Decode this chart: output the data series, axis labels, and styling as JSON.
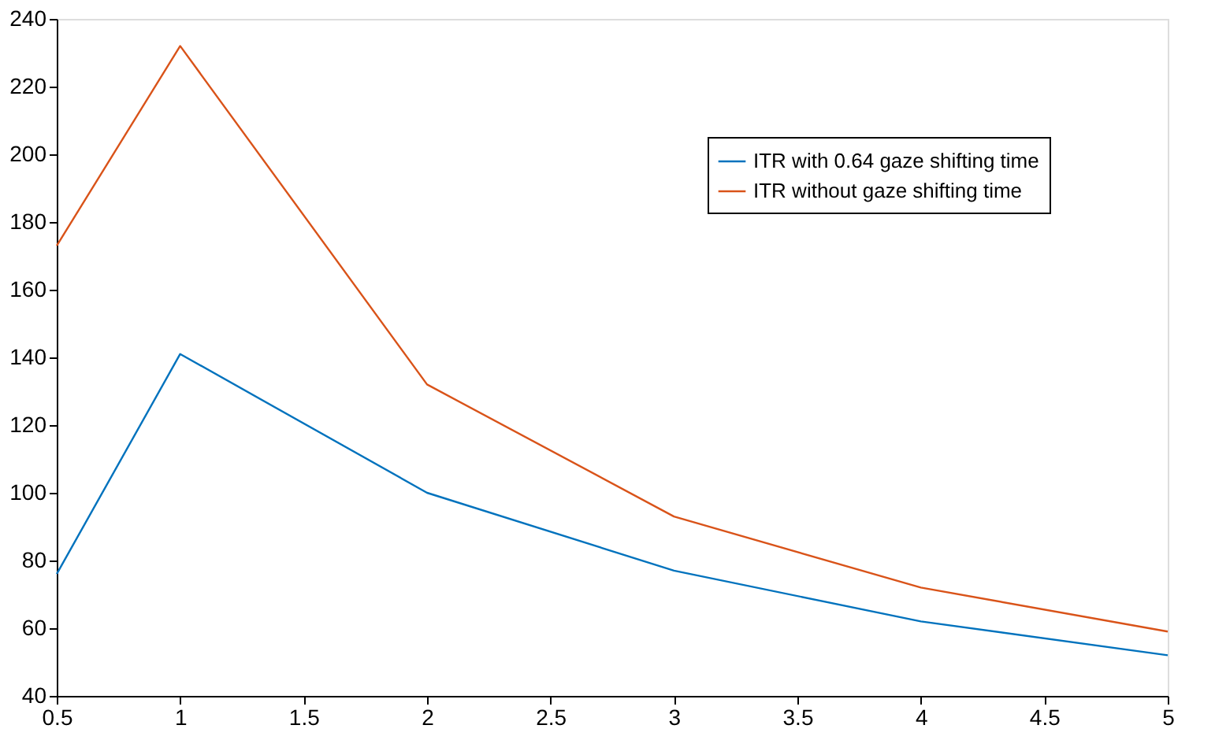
{
  "chart_data": {
    "type": "line",
    "x": [
      0.5,
      1,
      2,
      3,
      4,
      5
    ],
    "series": [
      {
        "name": "ITR with 0.64 gaze shifting time",
        "color": "#0072bd",
        "values": [
          76,
          141,
          100,
          77,
          62,
          52
        ]
      },
      {
        "name": "ITR without gaze shifting time",
        "color": "#d95319",
        "values": [
          173,
          232,
          132,
          93,
          72,
          59
        ]
      }
    ],
    "xlim": [
      0.5,
      5
    ],
    "xticks": [
      0.5,
      1,
      1.5,
      2,
      2.5,
      3,
      3.5,
      4,
      4.5,
      5
    ],
    "ylim": [
      40,
      240
    ],
    "yticks": [
      40,
      60,
      80,
      100,
      120,
      140,
      160,
      180,
      200,
      220,
      240
    ],
    "grid": false,
    "legend": "top right",
    "marker": "none",
    "line_style": "solid"
  }
}
